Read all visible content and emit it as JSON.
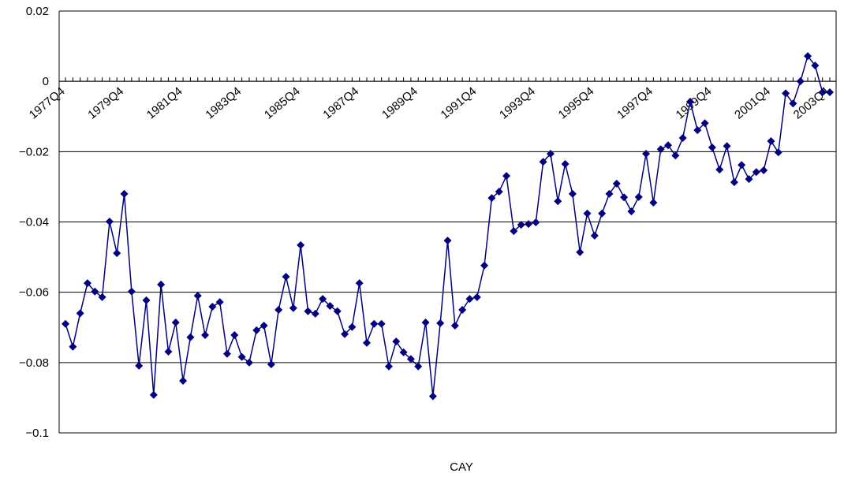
{
  "chart_data": {
    "type": "line",
    "x_label": "CAY",
    "categories": [
      "1977Q4",
      null,
      null,
      null,
      null,
      null,
      null,
      null,
      "1979Q4",
      null,
      null,
      null,
      null,
      null,
      null,
      null,
      "1981Q4",
      null,
      null,
      null,
      null,
      null,
      null,
      null,
      "1983Q4",
      null,
      null,
      null,
      null,
      null,
      null,
      null,
      "1985Q4",
      null,
      null,
      null,
      null,
      null,
      null,
      null,
      "1987Q4",
      null,
      null,
      null,
      null,
      null,
      null,
      null,
      "1989Q4",
      null,
      null,
      null,
      null,
      null,
      null,
      null,
      "1991Q4",
      null,
      null,
      null,
      null,
      null,
      null,
      null,
      "1993Q4",
      null,
      null,
      null,
      null,
      null,
      null,
      null,
      "1995Q4",
      null,
      null,
      null,
      null,
      null,
      null,
      null,
      "1997Q4",
      null,
      null,
      null,
      null,
      null,
      null,
      null,
      "1999Q4",
      null,
      null,
      null,
      null,
      null,
      null,
      null,
      "2001Q4",
      null,
      null,
      null,
      null,
      null,
      null,
      null,
      "2003Q4"
    ],
    "series": [
      {
        "name": "CAY",
        "color": "#000080",
        "values": [
          -0.069,
          -0.0755,
          -0.066,
          -0.0574,
          -0.0598,
          -0.0614,
          -0.0399,
          -0.0489,
          -0.032,
          -0.0598,
          -0.0809,
          -0.0623,
          -0.0892,
          -0.0578,
          -0.0769,
          -0.0686,
          -0.0852,
          -0.0728,
          -0.061,
          -0.0722,
          -0.0641,
          -0.0628,
          -0.0775,
          -0.0722,
          -0.0784,
          -0.08,
          -0.0708,
          -0.0695,
          -0.0805,
          -0.065,
          -0.0556,
          -0.0645,
          -0.0466,
          -0.0654,
          -0.0661,
          -0.0619,
          -0.0639,
          -0.0654,
          -0.0719,
          -0.0699,
          -0.0574,
          -0.0744,
          -0.069,
          -0.069,
          -0.0811,
          -0.074,
          -0.0771,
          -0.079,
          -0.0811,
          -0.0686,
          -0.0896,
          -0.0688,
          -0.0453,
          -0.0695,
          -0.065,
          -0.0619,
          -0.0614,
          -0.0524,
          -0.0332,
          -0.0314,
          -0.0269,
          -0.0426,
          -0.0408,
          -0.0406,
          -0.0401,
          -0.0229,
          -0.0206,
          -0.0341,
          -0.0235,
          -0.032,
          -0.0486,
          -0.0376,
          -0.0439,
          -0.0376,
          -0.032,
          -0.0291,
          -0.033,
          -0.037,
          -0.0329,
          -0.0206,
          -0.0345,
          -0.0193,
          -0.0182,
          -0.0211,
          -0.0161,
          -0.0058,
          -0.0139,
          -0.0119,
          -0.0188,
          -0.0251,
          -0.0184,
          -0.0287,
          -0.0238,
          -0.0278,
          -0.0258,
          -0.0253,
          -0.017,
          -0.0202,
          -0.0034,
          -0.0063,
          0,
          0.0072,
          0.0045,
          -0.0031,
          -0.0031
        ]
      }
    ],
    "ylim": [
      -0.1,
      0.02
    ],
    "yticks": [
      0.02,
      0,
      {
        "value": -0.02,
        "label": "−0.02"
      },
      {
        "value": -0.04,
        "label": "−0.04"
      },
      {
        "value": -0.06,
        "label": "−0.06"
      },
      {
        "value": -0.08,
        "label": "−0.08"
      },
      {
        "value": -0.1,
        "label": "−0.1"
      }
    ],
    "grid": true
  }
}
